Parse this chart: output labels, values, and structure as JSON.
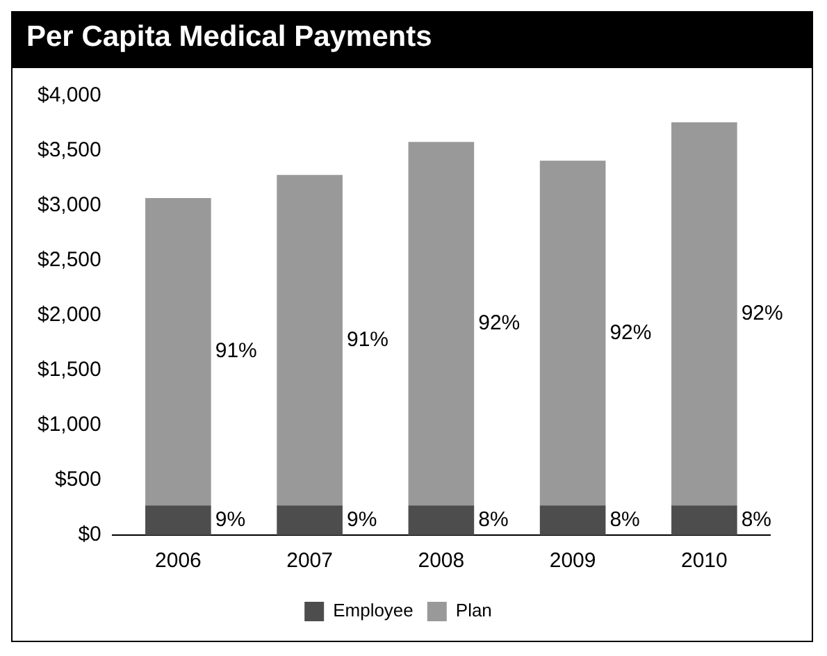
{
  "chart_data": {
    "type": "bar",
    "title": "Per Capita Medical Payments",
    "categories": [
      "2006",
      "2007",
      "2008",
      "2009",
      "2010"
    ],
    "stacked": true,
    "series": [
      {
        "name": "Employee",
        "color": "#4d4d4d",
        "values": [
          270,
          270,
          270,
          270,
          270
        ]
      },
      {
        "name": "Plan",
        "color": "#999999",
        "values": [
          2800,
          3010,
          3310,
          3140,
          3490
        ]
      }
    ],
    "annotations": [
      "9%",
      "9%",
      "8%",
      "8%",
      "8%",
      "91%",
      "91%",
      "92%",
      "92%",
      "92%"
    ],
    "ylim": [
      0,
      4000
    ],
    "yticks": [
      {
        "value": 0,
        "label": "$0"
      },
      {
        "value": 500,
        "label": "$500"
      },
      {
        "value": 1000,
        "label": "$1,000"
      },
      {
        "value": 1500,
        "label": "$1,500"
      },
      {
        "value": 2000,
        "label": "$2,000"
      },
      {
        "value": 2500,
        "label": "$2,500"
      },
      {
        "value": 3000,
        "label": "$3,000"
      },
      {
        "value": 3500,
        "label": "$3,500"
      },
      {
        "value": 4000,
        "label": "$4,000"
      }
    ],
    "grid": false,
    "legend": "bottom"
  }
}
